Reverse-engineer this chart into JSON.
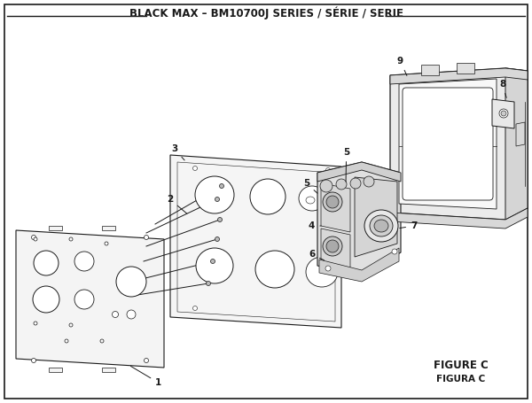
{
  "title": "BLACK MAX – BM10700J SERIES / SÉRIE / SERIE",
  "figure_label": "FIGURE C",
  "figura_label": "FIGURA C",
  "bg_color": "#ffffff",
  "border_color": "#1a1a1a",
  "line_color": "#1a1a1a",
  "title_fontsize": 8.5,
  "label_fontsize": 7.5,
  "figure_fontsize": 8.5
}
